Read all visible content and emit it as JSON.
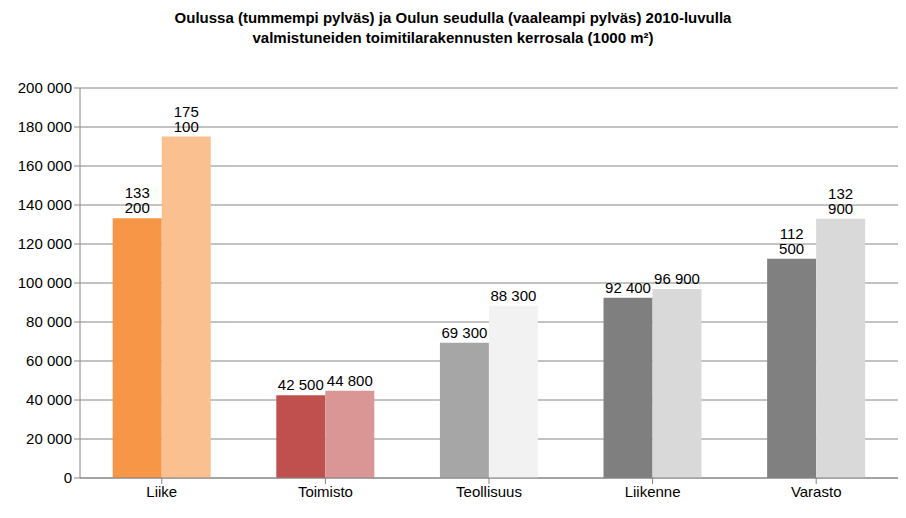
{
  "chart_data": {
    "type": "bar",
    "title": "Oulussa (tummempi pylväs) ja Oulun seudulla (vaaleampi pylväs) 2010-luvulla\nvalmistuneiden toimitilarakennusten kerrosala (1000 m²)",
    "categories": [
      "Liike",
      "Toimisto",
      "Teollisuus",
      "Liikenne",
      "Varasto"
    ],
    "series": [
      {
        "colors": [
          "#f79646",
          "#c0504d",
          "#a6a6a6",
          "#7f7f7f",
          "#808080"
        ],
        "values": [
          133200,
          42500,
          69300,
          92400,
          112500
        ],
        "value_labels": [
          "133 200",
          "42 500",
          "69 300",
          "92 400",
          "112 500"
        ]
      },
      {
        "colors": [
          "#fac090",
          "#d99694",
          "#f2f2f2",
          "#d9d9d9",
          "#d9d9d9"
        ],
        "values": [
          175100,
          44800,
          88300,
          96900,
          132900
        ],
        "value_labels": [
          "175 100",
          "44 800",
          "88 300",
          "96 900",
          "132 900"
        ]
      }
    ],
    "ylim": [
      0,
      200000
    ],
    "yticks": [
      {
        "value": 0,
        "label": "0"
      },
      {
        "value": 20000,
        "label": "20 000"
      },
      {
        "value": 40000,
        "label": "40 000"
      },
      {
        "value": 60000,
        "label": "60 000"
      },
      {
        "value": 80000,
        "label": "80 000"
      },
      {
        "value": 100000,
        "label": "100 000"
      },
      {
        "value": 120000,
        "label": "120 000"
      },
      {
        "value": 140000,
        "label": "140 000"
      },
      {
        "value": 160000,
        "label": "160 000"
      },
      {
        "value": 180000,
        "label": "180 000"
      },
      {
        "value": 200000,
        "label": "200 000"
      }
    ],
    "grid": true,
    "data_labels": true
  }
}
